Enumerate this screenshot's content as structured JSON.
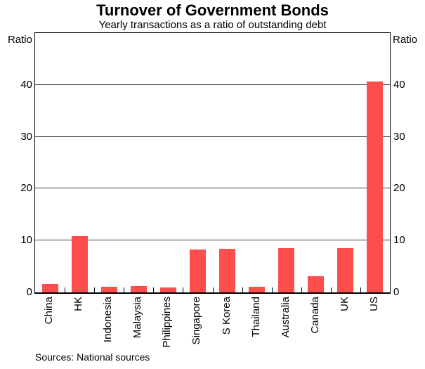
{
  "chart_data": {
    "type": "bar",
    "title": "Turnover of Government Bonds",
    "subtitle": "Yearly transactions as a ratio of outstanding debt",
    "ylabel_left": "Ratio",
    "ylabel_right": "Ratio",
    "categories": [
      "China",
      "HK",
      "Indonesia",
      "Malaysia",
      "Philippines",
      "Singapore",
      "S Korea",
      "Thailand",
      "Australia",
      "Canada",
      "UK",
      "US"
    ],
    "values": [
      1.6,
      10.9,
      1.1,
      1.2,
      0.9,
      8.2,
      8.4,
      1.1,
      8.6,
      3.1,
      8.6,
      40.6
    ],
    "ylim": [
      0,
      50
    ],
    "yticks": [
      0,
      10,
      20,
      30,
      40
    ],
    "grid": "horizontal",
    "legend": "none",
    "bar_color": "#FD4D4D",
    "gridline_color": "#3C3C3C",
    "axis_color": "#000000",
    "source_note": "Sources: National sources"
  }
}
